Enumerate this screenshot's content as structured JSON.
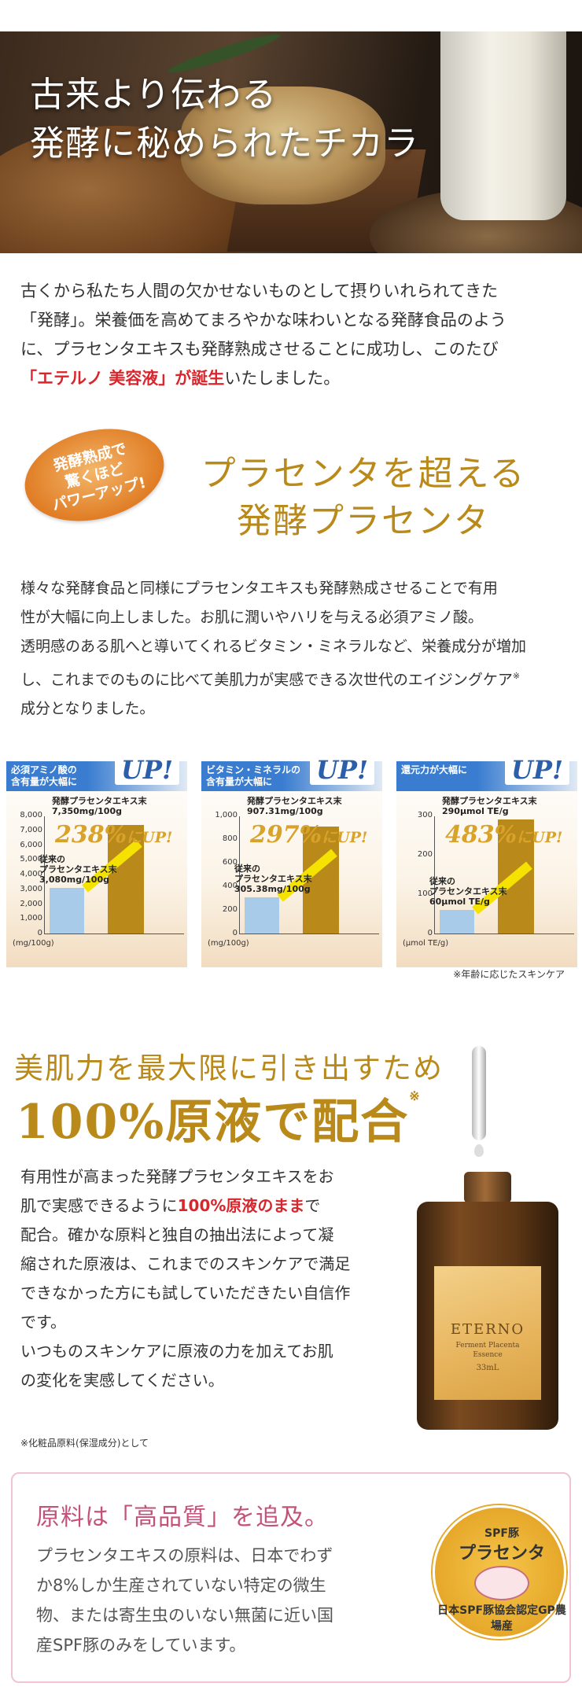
{
  "hero": {
    "line1": "古来より伝わる",
    "line2": "発酵に秘められたチカラ"
  },
  "intro": {
    "line1": "古くから私たち人間の欠かせないものとして摂りいれられてきた",
    "line2": "「発酵」。栄養価を高めてまろやかな味わいとなる発酵食品のよう",
    "line3": "に、プラセンタエキスも発酵熟成させることに成功し、このたび",
    "red": "「エテルノ 美容液」が誕生",
    "tail": "いたしました。"
  },
  "badge": {
    "l1": "発酵熟成で",
    "l2": "驚くほど",
    "l3": "パワーアップ!"
  },
  "heading1": {
    "l1": "プラセンタを超える",
    "l2": "発酵プラセンタ"
  },
  "body2": {
    "l1": "様々な発酵食品と同様にプラセンタエキスも発酵熟成させることで有用",
    "l2": "性が大幅に向上しました。お肌に潤いやハリを与える必須アミノ酸。",
    "l3": "透明感のある肌へと導いてくれるビタミン・ミネラルなど、栄養成分が増加",
    "l4": "し、これまでのものに比べて美肌力が実感できる次世代のエイジングケア",
    "sup": "※",
    "l5": "成分となりました。"
  },
  "chart_data": [
    {
      "type": "bar",
      "header": "必須アミノ酸の\n含有量が大幅に",
      "up": "UP!",
      "categories": [
        "従来のプラセンタエキス末",
        "発酵プラセンタエキス末"
      ],
      "values": [
        3080,
        7350
      ],
      "ylim": [
        0,
        8000
      ],
      "yticks": [
        "8,000",
        "7,000",
        "6,000",
        "5,000",
        "4,000",
        "3,000",
        "2,000",
        "1,000",
        "0"
      ],
      "new_label": "発酵プラセンタエキス末\n7,350mg/100g",
      "old_label": "従来の\nプラセンタエキス末\n3,080mg/100g",
      "pct": "238%",
      "pct_suffix": "にUP!",
      "unit": "(mg/100g)"
    },
    {
      "type": "bar",
      "header": "ビタミン・ミネラルの\n含有量が大幅に",
      "up": "UP!",
      "categories": [
        "従来のプラセンタエキス末",
        "発酵プラセンタエキス末"
      ],
      "values": [
        305.38,
        907.31
      ],
      "ylim": [
        0,
        1000
      ],
      "yticks": [
        "1,000",
        "800",
        "600",
        "400",
        "200",
        "0"
      ],
      "new_label": "発酵プラセンタエキス末\n907.31mg/100g",
      "old_label": "従来の\nプラセンタエキス末\n305.38mg/100g",
      "pct": "297%",
      "pct_suffix": "にUP!",
      "unit": "(mg/100g)"
    },
    {
      "type": "bar",
      "header": "還元力が大幅に",
      "up": "UP!",
      "categories": [
        "従来のプラセンタエキス末",
        "発酵プラセンタエキス末"
      ],
      "values": [
        60,
        290
      ],
      "ylim": [
        0,
        300
      ],
      "yticks": [
        "300",
        "200",
        "100",
        "0"
      ],
      "new_label": "発酵プラセンタエキス末\n290μmol TE/g",
      "old_label": "従来の\nプラセンタエキス末\n60μmol TE/g",
      "pct": "483%",
      "pct_suffix": "にUP!",
      "unit": "(μmol TE/g)"
    }
  ],
  "note1": "※年齢に応じたスキンケア",
  "heading2": "美肌力を最大限に引き出すため",
  "heading3": {
    "main": "100%原液で配合",
    "mark": "※"
  },
  "body3": {
    "l1": "有用性が高まった発酵プラセンタエキスをお",
    "l2a": "肌で実感できるように",
    "l2red": "100%原液のまま",
    "l2b": "で",
    "l3": "配合。確かな原料と独自の抽出法によって凝",
    "l4": "縮された原液は、これまでのスキンケアで満足",
    "l5": "できなかった方にも試していただきたい自信作",
    "l6": "です。",
    "l7": "いつものスキンケアに原液の力を加えてお肌",
    "l8": "の変化を実感してください。"
  },
  "note2": "※化粧品原料(保湿成分)として",
  "bottle": {
    "brand": "ETERNO",
    "sub1": "Ferment Placenta",
    "sub2": "Essence",
    "volume": "33mL"
  },
  "box4": {
    "title": "原料は「高品質」を追及。",
    "l1": "プラセンタエキスの原料は、日本でわず",
    "l2": "か8%しか生産されていない特定の微生",
    "l3": "物、または寄生虫のいない無菌に近い国",
    "l4": "産SPF豚のみをしています。"
  },
  "seal": {
    "t1": "SPF豚",
    "t2": "プラセンタ",
    "ring": "日本SPF豚協会認定GP農場産"
  },
  "colors": {
    "gold": "#b98a1a",
    "red": "#d9252b",
    "blue": "#3a7dd0",
    "pink": "#c2527a"
  }
}
